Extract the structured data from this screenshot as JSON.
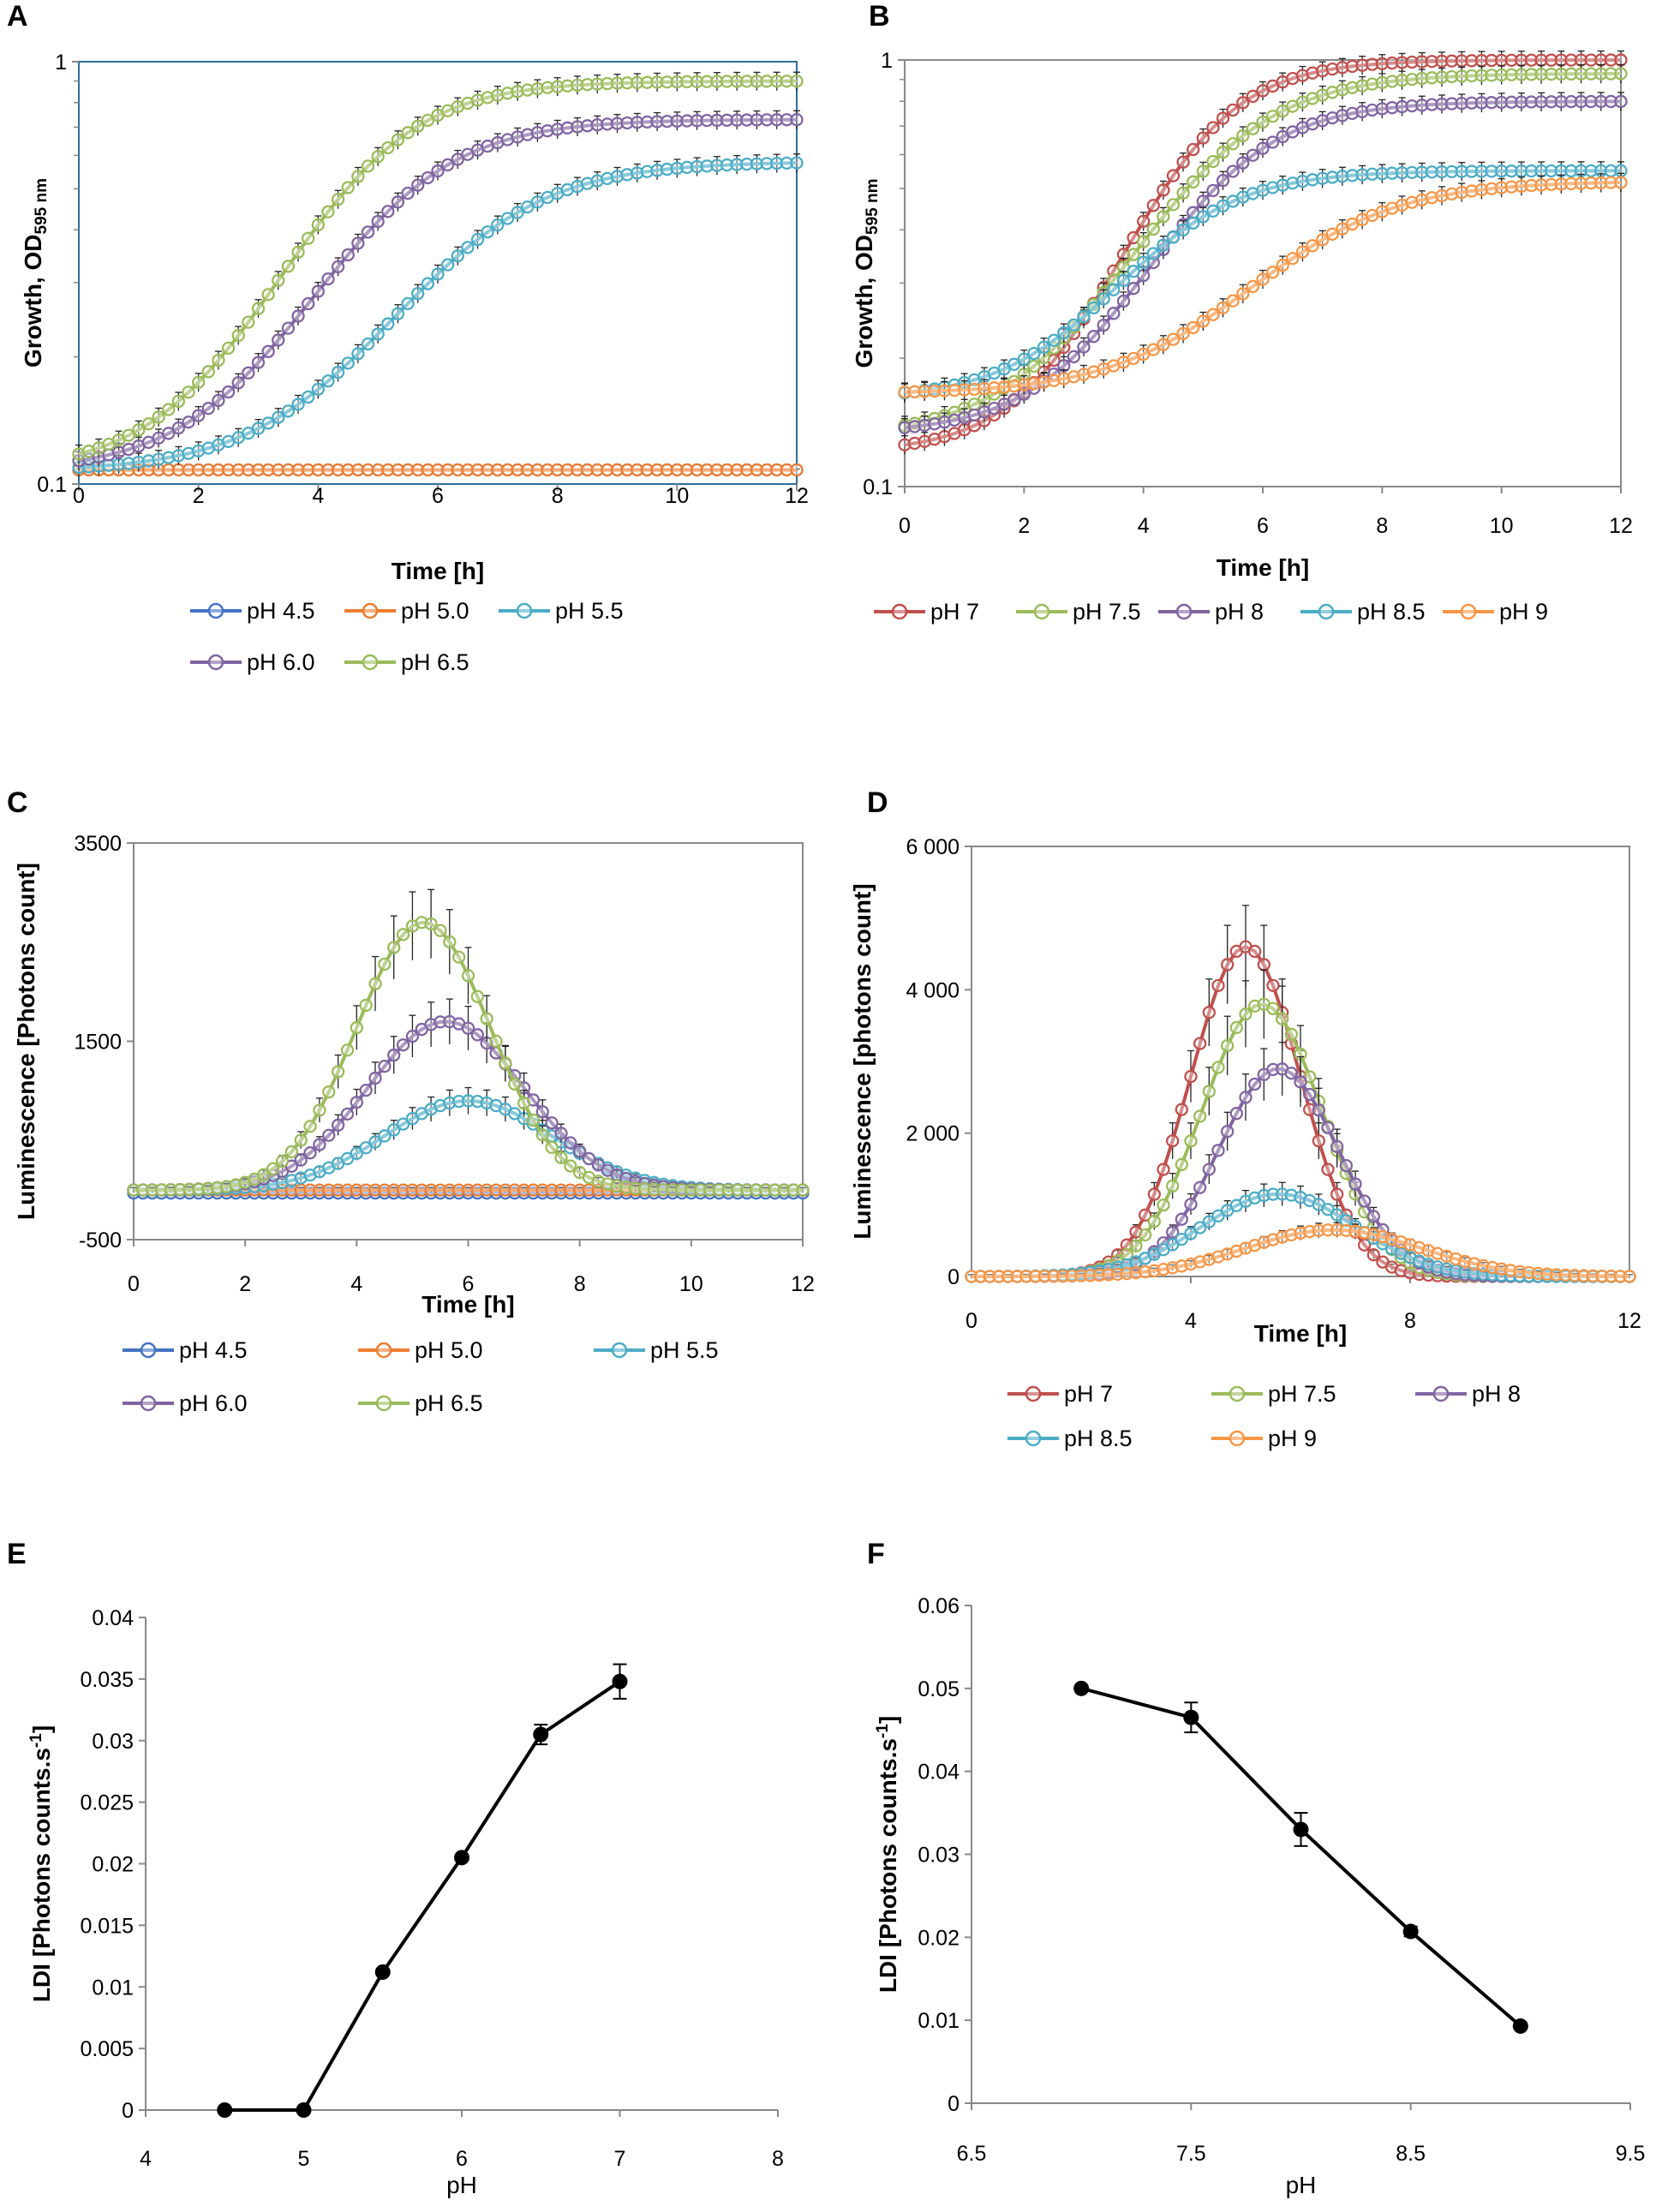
{
  "chart_data": [
    {
      "panel": "A",
      "type": "line",
      "xlabel": "Time [h]",
      "ylabel": "Growth, OD595nm",
      "ylabel_main": "Growth, OD",
      "ylabel_sub": "595 nm",
      "yscale": "log",
      "xlim": [
        0,
        12
      ],
      "ylim": [
        0.1,
        1
      ],
      "x_ticks": [
        "0",
        "2",
        "4",
        "6",
        "8",
        "10",
        "12"
      ],
      "y_ticks": [
        "0.1",
        "1"
      ],
      "series": [
        {
          "name": "pH 4.5",
          "color": "#4472C4",
          "model": "flat",
          "params": [
            0.108
          ]
        },
        {
          "name": "pH 5.0",
          "color": "#ED7D31",
          "model": "flat",
          "params": [
            0.108
          ]
        },
        {
          "name": "pH 5.5",
          "color": "#4BACC6",
          "model": "logistic",
          "params": [
            0.107,
            0.58,
            6.3,
            1.2
          ]
        },
        {
          "name": "pH 6.0",
          "color": "#8064A2",
          "model": "logistic",
          "params": [
            0.107,
            0.73,
            5.0,
            1.1
          ]
        },
        {
          "name": "pH 6.5",
          "color": "#9BBB59",
          "model": "logistic",
          "params": [
            0.107,
            0.9,
            4.5,
            1.05
          ]
        }
      ]
    },
    {
      "panel": "B",
      "type": "line",
      "xlabel": "Time [h]",
      "ylabel": "Growth, OD595nm",
      "ylabel_main": "Growth, OD",
      "ylabel_sub": "595 nm",
      "yscale": "log",
      "xlim": [
        0,
        12
      ],
      "ylim": [
        0.1,
        1
      ],
      "x_ticks": [
        "0",
        "2",
        "4",
        "6",
        "8",
        "10",
        "12"
      ],
      "y_ticks": [
        "0.1",
        "1"
      ],
      "series": [
        {
          "name": "pH 7",
          "color": "#C0504D",
          "model": "logistic",
          "params": [
            0.12,
            1.0,
            4.6,
            0.9
          ]
        },
        {
          "name": "pH 7.5",
          "color": "#9BBB59",
          "model": "logistic",
          "params": [
            0.13,
            0.93,
            4.9,
            1.1
          ]
        },
        {
          "name": "pH 8",
          "color": "#8064A2",
          "model": "logistic",
          "params": [
            0.133,
            0.8,
            5.0,
            1.0
          ]
        },
        {
          "name": "pH 8.5",
          "color": "#4BACC6",
          "model": "logistic",
          "params": [
            0.16,
            0.55,
            4.2,
            1.0
          ]
        },
        {
          "name": "pH 9",
          "color": "#F79646",
          "model": "logistic",
          "params": [
            0.165,
            0.52,
            6.5,
            1.2
          ]
        }
      ]
    },
    {
      "panel": "C",
      "type": "line",
      "xlabel": "Time [h]",
      "ylabel": "Luminescence [Photons count]",
      "xlim": [
        0,
        12
      ],
      "ylim": [
        -500,
        3500
      ],
      "x_ticks": [
        "0",
        "2",
        "4",
        "6",
        "8",
        "10",
        "12"
      ],
      "y_ticks": [
        "-500",
        "1500",
        "3500"
      ],
      "series": [
        {
          "name": "pH 4.5",
          "color": "#4472C4",
          "model": "flat",
          "params": [
            -30
          ]
        },
        {
          "name": "pH 5.0",
          "color": "#ED7D31",
          "model": "flat",
          "params": [
            0
          ]
        },
        {
          "name": "pH 5.5",
          "color": "#4BACC6",
          "model": "gauss",
          "params": [
            900,
            6.0,
            1.5,
            0
          ]
        },
        {
          "name": "pH 6.0",
          "color": "#8064A2",
          "model": "gauss",
          "params": [
            1700,
            5.6,
            1.4,
            0
          ]
        },
        {
          "name": "pH 6.5",
          "color": "#9BBB59",
          "model": "gauss",
          "params": [
            2700,
            5.2,
            1.2,
            0
          ]
        }
      ]
    },
    {
      "panel": "D",
      "type": "line",
      "xlabel": "Time [h]",
      "ylabel": "Luminescence [photons count]",
      "xlim": [
        0,
        12
      ],
      "ylim": [
        0,
        6000
      ],
      "x_ticks": [
        "0",
        "4",
        "8",
        "12"
      ],
      "y_ticks": [
        "0",
        "2 000",
        "4 000",
        "6 000"
      ],
      "series": [
        {
          "name": "pH 7",
          "color": "#C0504D",
          "model": "gauss",
          "params": [
            4600,
            5.0,
            1.0,
            0
          ]
        },
        {
          "name": "pH 7.5",
          "color": "#9BBB59",
          "model": "gauss",
          "params": [
            3800,
            5.3,
            1.1,
            0
          ]
        },
        {
          "name": "pH 8",
          "color": "#8064A2",
          "model": "gauss",
          "params": [
            2900,
            5.6,
            1.1,
            0
          ]
        },
        {
          "name": "pH 8.5",
          "color": "#4BACC6",
          "model": "gauss",
          "params": [
            1150,
            5.6,
            1.4,
            0
          ]
        },
        {
          "name": "pH 9",
          "color": "#F79646",
          "model": "gauss",
          "params": [
            650,
            6.6,
            1.6,
            0
          ]
        }
      ]
    },
    {
      "panel": "E",
      "type": "line",
      "xlabel": "pH",
      "ylabel": "LDI [Photons counts·s-1]",
      "ylabel_main": "LDI [Photons counts.s",
      "ylabel_sup": "-1",
      "ylabel_end": "]",
      "xlim": [
        4,
        8
      ],
      "ylim": [
        0,
        0.04
      ],
      "x_ticks": [
        "4",
        "5",
        "6",
        "7",
        "8"
      ],
      "y_ticks": [
        "0",
        "0.005",
        "0.01",
        "0.015",
        "0.02",
        "0.025",
        "0.03",
        "0.035",
        "0.04"
      ],
      "x": [
        4.5,
        5.0,
        5.5,
        6.0,
        6.5,
        7.0
      ],
      "y": [
        0,
        0,
        0.0112,
        0.0205,
        0.0305,
        0.0348
      ],
      "err": [
        0,
        0,
        0,
        0,
        0.0008,
        0.0014
      ]
    },
    {
      "panel": "F",
      "type": "line",
      "xlabel": "pH",
      "ylabel": "LDI [Photons counts·s-1]",
      "ylabel_main": "LDI [Photons counts.s",
      "ylabel_sup": "-1",
      "ylabel_end": "]",
      "xlim": [
        6.5,
        9.5
      ],
      "ylim": [
        0,
        0.06
      ],
      "x_ticks": [
        "6.5",
        "7.5",
        "8.5",
        "9.5"
      ],
      "y_ticks": [
        "0",
        "0.01",
        "0.02",
        "0.03",
        "0.04",
        "0.05",
        "0.06"
      ],
      "x": [
        7.0,
        7.5,
        8.0,
        8.5,
        9.0
      ],
      "y": [
        0.05,
        0.0465,
        0.033,
        0.0207,
        0.0093
      ],
      "err": [
        0,
        0.0018,
        0.002,
        0.0006,
        0
      ]
    }
  ]
}
